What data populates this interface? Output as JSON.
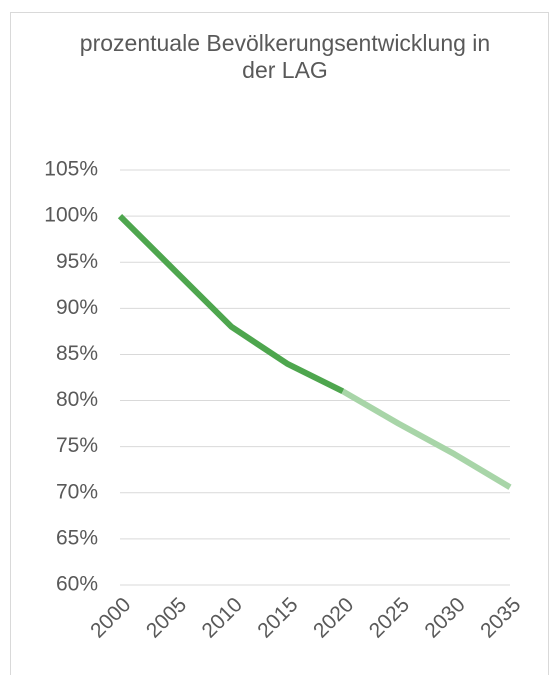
{
  "chart_data": {
    "type": "line",
    "title": "prozentuale Bevölkerungsentwicklung in der LAG",
    "categories": [
      "2000",
      "2005",
      "2010",
      "2015",
      "2020",
      "2025",
      "2030",
      "2035"
    ],
    "series": [
      {
        "color": "#4ea64e",
        "values": [
          100,
          94,
          88,
          84,
          81,
          null,
          null,
          null
        ]
      },
      {
        "color": "#a8d5a8",
        "values": [
          null,
          null,
          null,
          null,
          81,
          77.5,
          74.2,
          70.6
        ]
      }
    ],
    "ylim": [
      60,
      105
    ],
    "yticks": [
      {
        "value": 60,
        "label": "60%"
      },
      {
        "value": 65,
        "label": "65%"
      },
      {
        "value": 70,
        "label": "70%"
      },
      {
        "value": 75,
        "label": "75%"
      },
      {
        "value": 80,
        "label": "80%"
      },
      {
        "value": 85,
        "label": "85%"
      },
      {
        "value": 90,
        "label": "90%"
      },
      {
        "value": 95,
        "label": "95%"
      },
      {
        "value": 100,
        "label": "100%"
      },
      {
        "value": 105,
        "label": "105%"
      }
    ],
    "grid": true
  }
}
